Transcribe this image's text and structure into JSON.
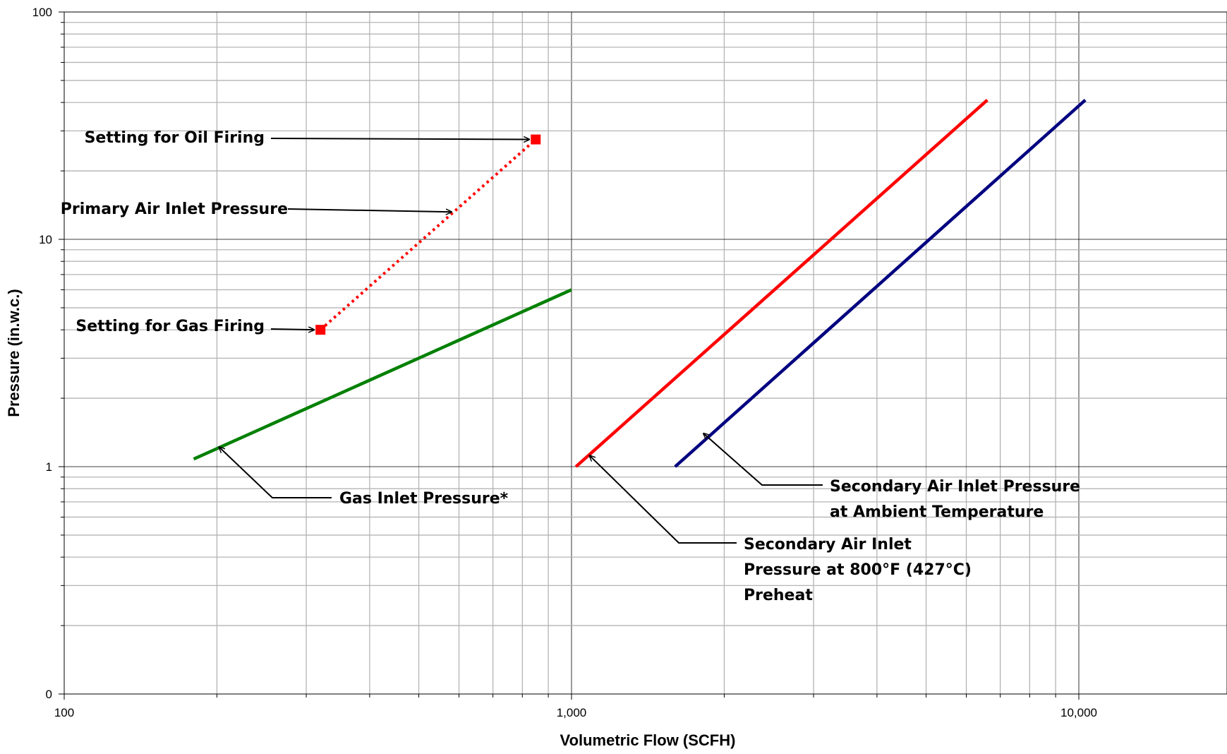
{
  "chart_data": {
    "type": "line",
    "title": "",
    "xlabel": "Volumetric Flow (SCFH)",
    "ylabel": "Pressure (in.w.c.)",
    "x_scale": "log",
    "y_scale": "log",
    "xlim": [
      100,
      23000
    ],
    "ylim": [
      0.1,
      100
    ],
    "x_ticks": [
      {
        "value": 100,
        "label": "100"
      },
      {
        "value": 1000,
        "label": "1,000"
      },
      {
        "value": 10000,
        "label": "10,000"
      }
    ],
    "y_ticks": [
      {
        "value": 0.1,
        "label": "0"
      },
      {
        "value": 1,
        "label": "1"
      },
      {
        "value": 10,
        "label": "10"
      },
      {
        "value": 100,
        "label": "100"
      }
    ],
    "grid": true,
    "legend": "none",
    "series": [
      {
        "name": "Gas Inlet Pressure*",
        "color": "#008000",
        "style": "solid",
        "x": [
          180,
          1000
        ],
        "y": [
          1.08,
          6.0
        ]
      },
      {
        "name": "Primary Air Inlet Pressure",
        "color": "#ff0000",
        "style": "dotted",
        "x": [
          320,
          850
        ],
        "y": [
          4.0,
          27.5
        ],
        "markers": "square"
      },
      {
        "name": "Secondary Air Inlet Pressure at 800°F (427°C) Preheat",
        "color": "#ff0000",
        "style": "solid",
        "x": [
          1020,
          6600
        ],
        "y": [
          1.0,
          41
        ]
      },
      {
        "name": "Secondary Air Inlet Pressure at Ambient Temperature",
        "color": "#000080",
        "style": "solid",
        "x": [
          1600,
          10300
        ],
        "y": [
          1.0,
          41
        ]
      }
    ],
    "annotations": [
      {
        "id": "oil",
        "lines": [
          "Setting for Oil Firing"
        ],
        "target": [
          850,
          27.5
        ]
      },
      {
        "id": "primary",
        "lines": [
          "Primary Air Inlet Pressure"
        ],
        "target": [
          580,
          13.2
        ]
      },
      {
        "id": "gas_setting",
        "lines": [
          "Setting for Gas Firing"
        ],
        "target": [
          320,
          4.0
        ]
      },
      {
        "id": "gas_inlet",
        "lines": [
          "Gas Inlet Pressure*"
        ],
        "target": [
          202,
          1.22
        ]
      },
      {
        "id": "sec_preheat",
        "lines": [
          "Secondary Air Inlet",
          "Pressure at 800°F (427°C)",
          "Preheat"
        ],
        "target": [
          1085,
          1.12
        ]
      },
      {
        "id": "sec_ambient",
        "lines": [
          "Secondary Air Inlet Pressure",
          "at Ambient Temperature"
        ],
        "target": [
          1820,
          1.4
        ]
      }
    ]
  }
}
